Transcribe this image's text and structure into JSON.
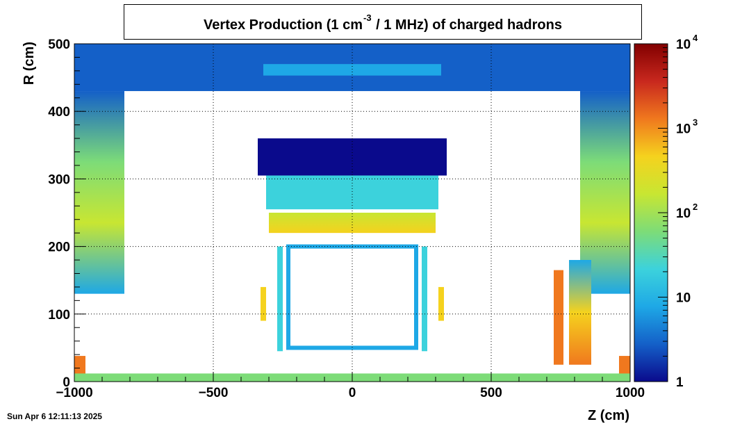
{
  "title": {
    "prefix": "Vertex Production (1 cm",
    "superscript": "-3",
    "suffix": " / 1 MHz) of   charged hadrons"
  },
  "timestamp": "Sun Apr  6 12:11:13 2025",
  "chart_data": {
    "type": "heatmap",
    "xlabel": "Z (cm)",
    "ylabel": "R (cm)",
    "xlim": [
      -1000,
      1000
    ],
    "ylim": [
      0,
      500
    ],
    "x_ticks": [
      -1000,
      -500,
      0,
      500,
      1000
    ],
    "x_tick_labels": [
      "−1000",
      "−500",
      "0",
      "500",
      "1000"
    ],
    "y_ticks": [
      0,
      100,
      200,
      300,
      400,
      500
    ],
    "y_tick_labels": [
      "0",
      "100",
      "200",
      "300",
      "400",
      "500"
    ],
    "grid": true,
    "colorbar": {
      "scale": "log",
      "range": [
        1,
        10000
      ],
      "tick_labels": [
        {
          "value": 1,
          "base": "1",
          "exp": ""
        },
        {
          "value": 10,
          "base": "10",
          "exp": ""
        },
        {
          "value": 100,
          "base": "10",
          "exp": "2"
        },
        {
          "value": 1000,
          "base": "10",
          "exp": "3"
        },
        {
          "value": 10000,
          "base": "10",
          "exp": "4"
        }
      ],
      "palette": [
        "#0a0a8c",
        "#1460c8",
        "#1ea8e6",
        "#3cd2dc",
        "#7ddc78",
        "#c8e632",
        "#f5d21e",
        "#f0781e",
        "#c8281e",
        "#820000"
      ]
    },
    "regions": [
      {
        "name": "muon-top-band",
        "z": [
          -1000,
          1000
        ],
        "r": [
          430,
          500
        ],
        "value": 3
      },
      {
        "name": "muon-top-strip",
        "z": [
          -320,
          320
        ],
        "r": [
          453,
          470
        ],
        "value": 12
      },
      {
        "name": "endcap-left",
        "z": [
          -1000,
          -820
        ],
        "r": [
          130,
          430
        ],
        "value": 60
      },
      {
        "name": "endcap-right",
        "z": [
          820,
          1000
        ],
        "r": [
          130,
          430
        ],
        "value": 60
      },
      {
        "name": "cryostat-top",
        "z": [
          -340,
          340
        ],
        "r": [
          305,
          360
        ],
        "value": 2
      },
      {
        "name": "calo-barrel-outer",
        "z": [
          -310,
          310
        ],
        "r": [
          255,
          305
        ],
        "value": 30
      },
      {
        "name": "calo-barrel-inner",
        "z": [
          -300,
          300
        ],
        "r": [
          220,
          250
        ],
        "value": 150
      },
      {
        "name": "tracker-frame-left",
        "z": [
          -270,
          -250
        ],
        "r": [
          45,
          200
        ],
        "value": 20
      },
      {
        "name": "tracker-frame-right",
        "z": [
          250,
          270
        ],
        "r": [
          45,
          200
        ],
        "value": 20
      },
      {
        "name": "calo-ring-left",
        "z": [
          -330,
          -310
        ],
        "r": [
          90,
          140
        ],
        "value": 300
      },
      {
        "name": "calo-ring-right",
        "z": [
          310,
          330
        ],
        "r": [
          90,
          140
        ],
        "value": 300
      },
      {
        "name": "forward-right-a",
        "z": [
          725,
          760
        ],
        "r": [
          25,
          165
        ],
        "value": 800
      },
      {
        "name": "forward-right-b",
        "z": [
          780,
          860
        ],
        "r": [
          25,
          180
        ],
        "value": 1500
      },
      {
        "name": "forward-left-low",
        "z": [
          -1000,
          -960
        ],
        "r": [
          5,
          38
        ],
        "value": 1000
      },
      {
        "name": "forward-right-low",
        "z": [
          960,
          1000
        ],
        "r": [
          5,
          38
        ],
        "value": 1000
      },
      {
        "name": "beampipe",
        "z": [
          -1000,
          1000
        ],
        "r": [
          0,
          12
        ],
        "value": 40
      }
    ]
  }
}
